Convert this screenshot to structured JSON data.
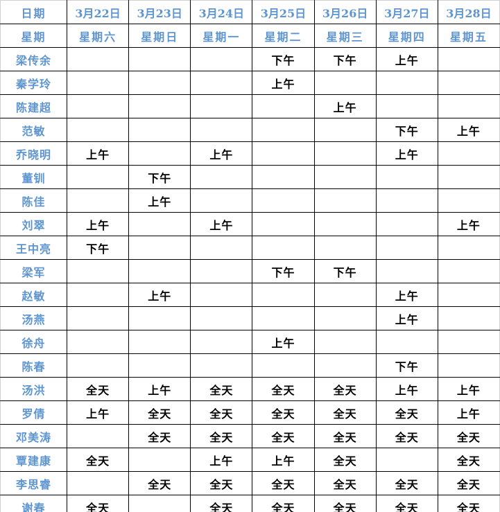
{
  "colors": {
    "header_text": "#5E95D0",
    "name_text": "#5E95D0",
    "value_text": "#000000",
    "grid_line": "#000000",
    "outer_edge": "#d0d0d0",
    "background": "#ffffff"
  },
  "table": {
    "corner_labels": {
      "date": "日期",
      "week": "星期"
    },
    "columns": [
      {
        "date": "3月22日",
        "weekday": "星期六"
      },
      {
        "date": "3月23日",
        "weekday": "星期日"
      },
      {
        "date": "3月24日",
        "weekday": "星期一"
      },
      {
        "date": "3月25日",
        "weekday": "星期二"
      },
      {
        "date": "3月26日",
        "weekday": "星期三"
      },
      {
        "date": "3月27日",
        "weekday": "星期四"
      },
      {
        "date": "3月28日",
        "weekday": "星期五"
      }
    ],
    "rows": [
      {
        "name": "梁传余",
        "cells": [
          "",
          "",
          "",
          "下午",
          "下午",
          "上午",
          ""
        ]
      },
      {
        "name": "秦学玲",
        "cells": [
          "",
          "",
          "",
          "上午",
          "",
          "",
          ""
        ]
      },
      {
        "name": "陈建超",
        "cells": [
          "",
          "",
          "",
          "",
          "上午",
          "",
          ""
        ]
      },
      {
        "name": "范敏",
        "cells": [
          "",
          "",
          "",
          "",
          "",
          "下午",
          "上午"
        ]
      },
      {
        "name": "乔晓明",
        "cells": [
          "上午",
          "",
          "上午",
          "",
          "",
          "上午",
          ""
        ]
      },
      {
        "name": "董钏",
        "cells": [
          "",
          "下午",
          "",
          "",
          "",
          "",
          ""
        ]
      },
      {
        "name": "陈佳",
        "cells": [
          "",
          "上午",
          "",
          "",
          "",
          "",
          ""
        ]
      },
      {
        "name": "刘翠",
        "cells": [
          "上午",
          "",
          "上午",
          "",
          "",
          "",
          "上午"
        ]
      },
      {
        "name": "王中亮",
        "cells": [
          "下午",
          "",
          "",
          "",
          "",
          "",
          ""
        ]
      },
      {
        "name": "梁军",
        "cells": [
          "",
          "",
          "",
          "下午",
          "下午",
          "",
          ""
        ]
      },
      {
        "name": "赵敏",
        "cells": [
          "",
          "上午",
          "",
          "",
          "",
          "上午",
          ""
        ]
      },
      {
        "name": "汤燕",
        "cells": [
          "",
          "",
          "",
          "",
          "",
          "上午",
          ""
        ]
      },
      {
        "name": "徐舟",
        "cells": [
          "",
          "",
          "",
          "上午",
          "",
          "",
          ""
        ]
      },
      {
        "name": "陈春",
        "cells": [
          "",
          "",
          "",
          "",
          "",
          "下午",
          ""
        ]
      },
      {
        "name": "汤洪",
        "cells": [
          "全天",
          "上午",
          "全天",
          "全天",
          "全天",
          "上午",
          "上午"
        ]
      },
      {
        "name": "罗倩",
        "cells": [
          "上午",
          "全天",
          "全天",
          "全天",
          "全天",
          "全天",
          "上午"
        ]
      },
      {
        "name": "邓美涛",
        "cells": [
          "",
          "全天",
          "全天",
          "全天",
          "全天",
          "全天",
          "全天"
        ]
      },
      {
        "name": "覃建康",
        "cells": [
          "全天",
          "",
          "上午",
          "上午",
          "全天",
          "",
          "全天"
        ]
      },
      {
        "name": "李思睿",
        "cells": [
          "",
          "全天",
          "全天",
          "全天",
          "全天",
          "全天",
          "全天"
        ]
      },
      {
        "name": "谢春",
        "cells": [
          "全天",
          "",
          "全天",
          "全天",
          "全天",
          "全天",
          "全天"
        ]
      }
    ]
  }
}
